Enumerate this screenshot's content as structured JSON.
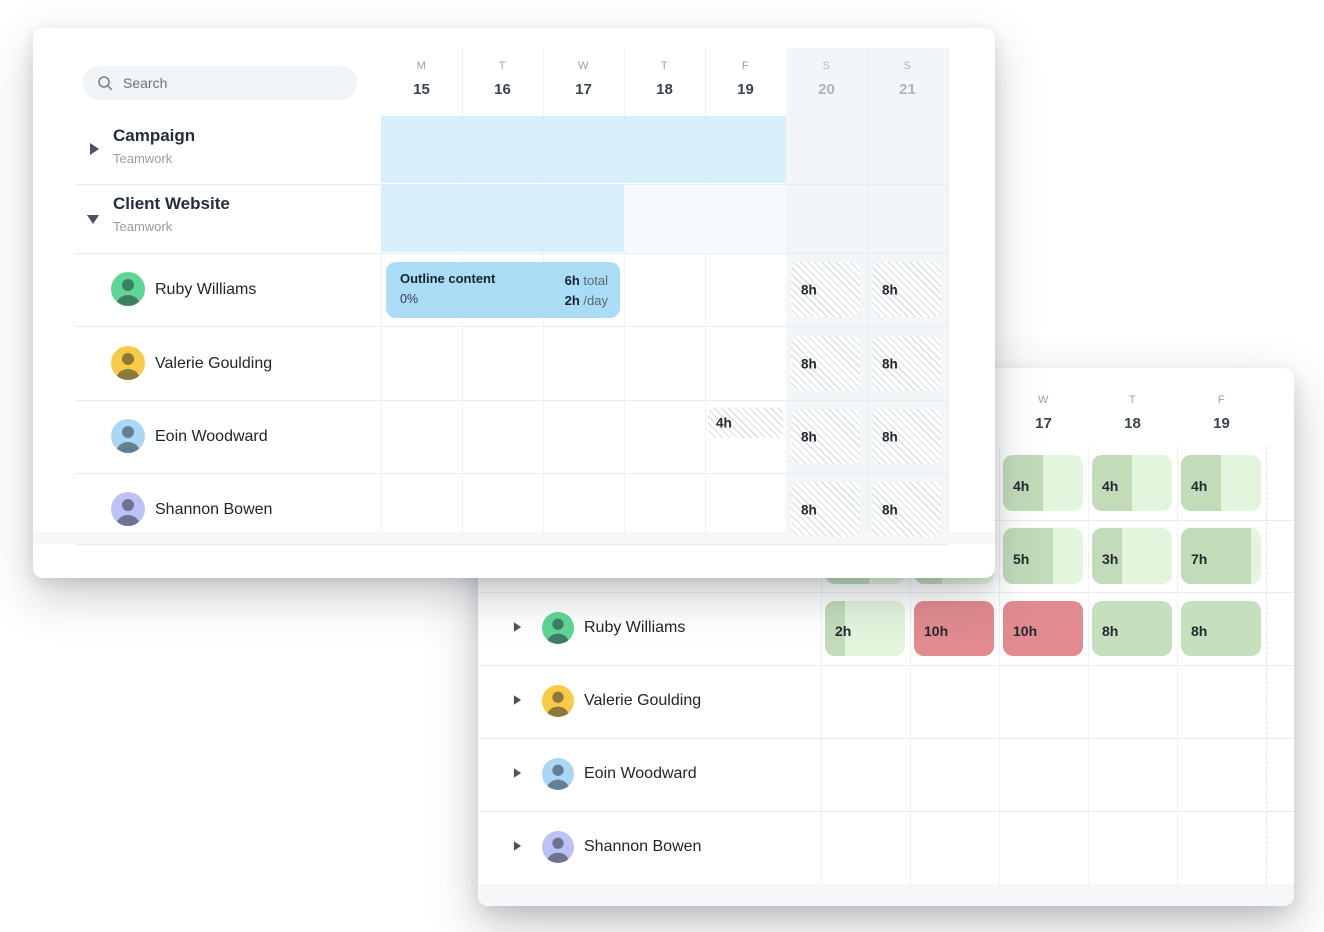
{
  "front_card": {
    "search": {
      "placeholder": "Search"
    },
    "day_header": [
      {
        "letter": "M",
        "date": "15"
      },
      {
        "letter": "T",
        "date": "16"
      },
      {
        "letter": "W",
        "date": "17"
      },
      {
        "letter": "T",
        "date": "18"
      },
      {
        "letter": "F",
        "date": "19"
      },
      {
        "letter": "S",
        "date": "20"
      },
      {
        "letter": "S",
        "date": "21"
      }
    ],
    "projects": [
      {
        "name": "Campaign",
        "subtitle": "Teamwork"
      },
      {
        "name": "Client Website",
        "subtitle": "Teamwork"
      }
    ],
    "task_card": {
      "title": "Outline content",
      "progress": "0%",
      "total_value": "6h",
      "total_unit": " total",
      "daily_value": "2h",
      "daily_unit": " /day"
    },
    "members": [
      {
        "name": "Ruby Williams",
        "avatar_color": "#5fd695",
        "sat": "8h",
        "sun": "8h"
      },
      {
        "name": "Valerie Goulding",
        "avatar_color": "#f8ca45",
        "sat": "8h",
        "sun": "8h"
      },
      {
        "name": "Eoin Woodward",
        "avatar_color": "#aad7f3",
        "fri": "4h",
        "sat": "8h",
        "sun": "8h"
      },
      {
        "name": "Shannon Bowen",
        "avatar_color": "#bdc1f4",
        "sat": "8h",
        "sun": "8h"
      }
    ]
  },
  "back_card": {
    "day_header": [
      {
        "letter": "",
        "date": ""
      },
      {
        "letter": "",
        "date": ""
      },
      {
        "letter": "W",
        "date": "17"
      },
      {
        "letter": "T",
        "date": "18"
      },
      {
        "letter": "F",
        "date": "19"
      }
    ],
    "capacity_rows": [
      {
        "cells": [
          {
            "label": "4h",
            "fill": 0.5
          },
          {
            "label": "4h",
            "fill": 0.5
          },
          {
            "label": "4h",
            "fill": 0.5
          }
        ]
      },
      {
        "cells": [
          {
            "label": "",
            "fill": 0.55
          },
          {
            "label": "",
            "fill": 0.35
          },
          {
            "label": "5h",
            "fill": 0.625
          },
          {
            "label": "3h",
            "fill": 0.375
          },
          {
            "label": "7h",
            "fill": 0.875
          }
        ]
      }
    ],
    "members": [
      {
        "name": "Ruby Williams",
        "avatar_color": "#5fd695",
        "cells": [
          {
            "label": "2h",
            "type": "partial",
            "fill": 0.25
          },
          {
            "label": "10h",
            "type": "over"
          },
          {
            "label": "10h",
            "type": "over"
          },
          {
            "label": "8h",
            "type": "full"
          },
          {
            "label": "8h",
            "type": "full"
          }
        ]
      },
      {
        "name": "Valerie Goulding",
        "avatar_color": "#f8ca45",
        "cells": []
      },
      {
        "name": "Eoin Woodward",
        "avatar_color": "#aad7f3",
        "cells": []
      },
      {
        "name": "Shannon Bowen",
        "avatar_color": "#bdc1f4",
        "cells": []
      }
    ]
  },
  "colors": {
    "timeline_bar": "#d8eefb",
    "task_card_bg": "#abdcf6",
    "weekend_bg": "#f3f6f9",
    "capacity_fill_green": "#c2dcba",
    "capacity_light_green": "#e3f6dd",
    "capacity_full_green": "#c6dfbd",
    "overallocated_red": "#e18b90"
  }
}
